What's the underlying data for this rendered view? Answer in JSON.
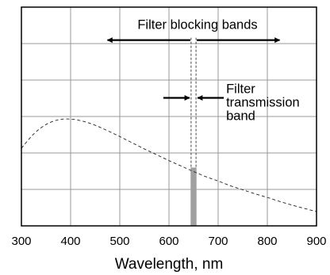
{
  "chart_data": {
    "type": "line",
    "title": "",
    "xlabel": "Wavelength, nm",
    "ylabel": "",
    "xlim": [
      300,
      900
    ],
    "ylim": [
      0,
      6
    ],
    "x_ticks": [
      300,
      400,
      500,
      600,
      700,
      800,
      900
    ],
    "grid": true,
    "series": [
      {
        "style": "dashed",
        "x": [
          300,
          325,
          350,
          375,
          400,
          425,
          450,
          475,
          500,
          525,
          550,
          575,
          600,
          625,
          650,
          675,
          700,
          725,
          750,
          775,
          800,
          825,
          850,
          875,
          900
        ],
        "y": [
          2.13,
          2.52,
          2.78,
          2.91,
          2.93,
          2.87,
          2.76,
          2.61,
          2.45,
          2.28,
          2.11,
          1.95,
          1.79,
          1.64,
          1.49,
          1.35,
          1.23,
          1.1,
          0.99,
          0.88,
          0.78,
          0.67,
          0.57,
          0.48,
          0.39
        ]
      }
    ],
    "transmission_band": {
      "center": 650,
      "width": 12,
      "height": 1.6
    },
    "annotations": {
      "blocking": {
        "text": "Filter blocking bands",
        "from": 475,
        "to": 825,
        "gap": [
          645,
          655
        ],
        "y": 5.4
      },
      "transmission": {
        "lines": [
          "Filter",
          "transmission",
          "band"
        ],
        "left": 645,
        "right": 655,
        "y": 3.75
      }
    }
  }
}
